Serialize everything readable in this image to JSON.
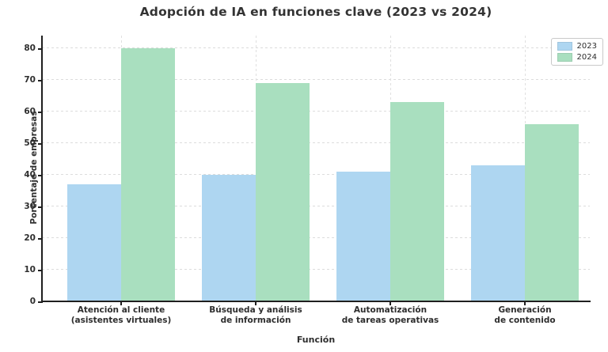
{
  "chart_data": {
    "type": "bar",
    "title": "Adopción de IA en funciones clave (2023 vs 2024)",
    "xlabel": "Función",
    "ylabel": "Porcentaje de empresas",
    "categories": [
      "Atención al cliente\n(asistentes virtuales)",
      "Búsqueda y análisis\nde información",
      "Automatización\nde tareas operativas",
      "Generación\nde contenido"
    ],
    "series": [
      {
        "name": "2023",
        "color": "#AED6F1",
        "values": [
          37,
          40,
          41,
          43
        ]
      },
      {
        "name": "2024",
        "color": "#A9DFBF",
        "values": [
          80,
          69,
          63,
          56
        ]
      }
    ],
    "yticks": [
      0,
      10,
      20,
      30,
      40,
      50,
      60,
      70,
      80
    ],
    "ylim": [
      0,
      84
    ],
    "grid": true,
    "grid_color": "#dcdcdc",
    "spine_color": "#1f1f1f",
    "legend": {
      "position": "upper right",
      "entries": [
        "2023",
        "2024"
      ]
    }
  }
}
